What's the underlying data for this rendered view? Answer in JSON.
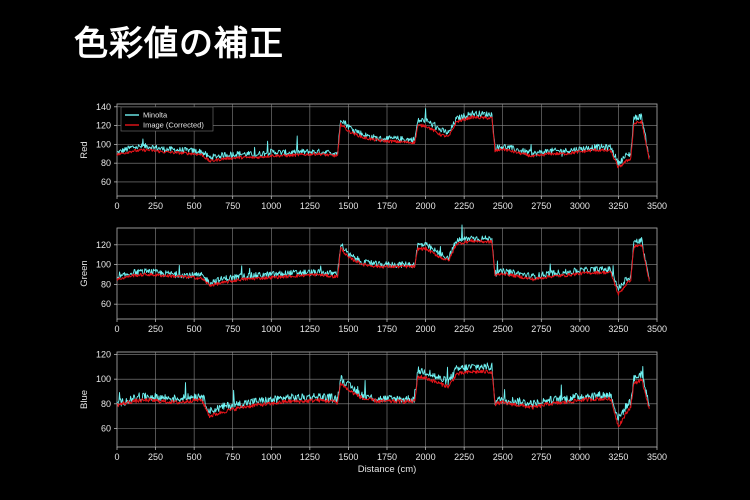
{
  "slide": {
    "title": "色彩値の補正"
  },
  "colors": {
    "background": "#000000",
    "minolta": "#6ff2f2",
    "image": "#e8141a",
    "grid": "#8a8a8a"
  },
  "chart_data": [
    {
      "type": "line",
      "ylabel": "Red",
      "xlim": [
        0,
        3500
      ],
      "ylim": [
        45,
        143
      ],
      "yticks": [
        60,
        80,
        100,
        120,
        140
      ],
      "xticks": [
        0,
        250,
        500,
        750,
        1000,
        1250,
        1500,
        1750,
        2000,
        2250,
        2500,
        2750,
        3000,
        3250,
        3500
      ],
      "legend": [
        "Minolta",
        "Image (Corrected)"
      ],
      "legend_position": "top-left",
      "series": [
        {
          "name": "Minolta",
          "x": [
            0,
            100,
            200,
            300,
            400,
            500,
            550,
            600,
            700,
            800,
            900,
            1000,
            1100,
            1200,
            1300,
            1400,
            1430,
            1450,
            1500,
            1600,
            1700,
            1800,
            1900,
            1930,
            1950,
            2000,
            2100,
            2150,
            2200,
            2300,
            2400,
            2430,
            2450,
            2500,
            2600,
            2700,
            2800,
            2900,
            3000,
            3100,
            3200,
            3250,
            3300,
            3330,
            3350,
            3400,
            3450
          ],
          "y": [
            91,
            97,
            98,
            95,
            94,
            93,
            92,
            86,
            89,
            90,
            89,
            92,
            91,
            92,
            92,
            91,
            91,
            128,
            119,
            110,
            106,
            106,
            105,
            105,
            125,
            126,
            115,
            112,
            127,
            133,
            132,
            132,
            96,
            98,
            94,
            90,
            93,
            93,
            95,
            97,
            97,
            80,
            88,
            90,
            128,
            130,
            86
          ]
        },
        {
          "name": "Image (Corrected)",
          "x": [
            0,
            100,
            200,
            300,
            400,
            500,
            550,
            600,
            700,
            800,
            900,
            1000,
            1100,
            1200,
            1300,
            1400,
            1430,
            1450,
            1500,
            1600,
            1700,
            1800,
            1900,
            1930,
            1950,
            2000,
            2100,
            2150,
            2200,
            2300,
            2400,
            2430,
            2450,
            2500,
            2600,
            2700,
            2800,
            2900,
            3000,
            3100,
            3200,
            3250,
            3300,
            3330,
            3350,
            3400,
            3450
          ],
          "y": [
            89,
            93,
            94,
            92,
            91,
            90,
            89,
            82,
            85,
            86,
            86,
            88,
            88,
            89,
            90,
            88,
            88,
            122,
            114,
            107,
            104,
            103,
            102,
            102,
            120,
            120,
            110,
            108,
            124,
            129,
            128,
            128,
            93,
            95,
            91,
            87,
            90,
            90,
            92,
            94,
            93,
            75,
            82,
            85,
            122,
            124,
            84
          ]
        }
      ]
    },
    {
      "type": "line",
      "ylabel": "Green",
      "xlim": [
        0,
        3500
      ],
      "ylim": [
        45,
        137
      ],
      "yticks": [
        60,
        80,
        100,
        120
      ],
      "xticks": [
        0,
        250,
        500,
        750,
        1000,
        1250,
        1500,
        1750,
        2000,
        2250,
        2500,
        2750,
        3000,
        3250,
        3500
      ],
      "series": [
        {
          "name": "Minolta",
          "x": [
            0,
            100,
            200,
            300,
            400,
            500,
            550,
            600,
            700,
            800,
            900,
            1000,
            1100,
            1200,
            1300,
            1400,
            1430,
            1450,
            1500,
            1600,
            1700,
            1800,
            1900,
            1930,
            1950,
            2000,
            2100,
            2150,
            2200,
            2300,
            2400,
            2430,
            2450,
            2500,
            2600,
            2700,
            2800,
            2900,
            3000,
            3100,
            3200,
            3250,
            3300,
            3330,
            3350,
            3400,
            3450
          ],
          "y": [
            86,
            92,
            93,
            91,
            90,
            89,
            89,
            82,
            86,
            88,
            89,
            90,
            91,
            92,
            92,
            91,
            91,
            121,
            110,
            102,
            100,
            100,
            100,
            100,
            120,
            120,
            110,
            107,
            124,
            127,
            126,
            126,
            91,
            93,
            91,
            88,
            91,
            92,
            94,
            95,
            95,
            75,
            85,
            88,
            122,
            125,
            85
          ]
        },
        {
          "name": "Image (Corrected)",
          "x": [
            0,
            100,
            200,
            300,
            400,
            500,
            550,
            600,
            700,
            800,
            900,
            1000,
            1100,
            1200,
            1300,
            1400,
            1430,
            1450,
            1500,
            1600,
            1700,
            1800,
            1900,
            1930,
            1950,
            2000,
            2100,
            2150,
            2200,
            2300,
            2400,
            2430,
            2450,
            2500,
            2600,
            2700,
            2800,
            2900,
            3000,
            3100,
            3200,
            3250,
            3300,
            3330,
            3350,
            3400,
            3450
          ],
          "y": [
            85,
            89,
            90,
            89,
            88,
            87,
            86,
            79,
            82,
            85,
            86,
            87,
            88,
            89,
            90,
            88,
            88,
            117,
            107,
            100,
            98,
            98,
            98,
            98,
            116,
            116,
            107,
            104,
            121,
            124,
            123,
            123,
            89,
            91,
            88,
            85,
            88,
            89,
            91,
            92,
            92,
            70,
            80,
            85,
            118,
            120,
            83
          ]
        }
      ]
    },
    {
      "type": "line",
      "ylabel": "Blue",
      "xlabel": "Distance (cm)",
      "xlim": [
        0,
        3500
      ],
      "ylim": [
        45,
        122
      ],
      "yticks": [
        60,
        80,
        100,
        120
      ],
      "xticks": [
        0,
        250,
        500,
        750,
        1000,
        1250,
        1500,
        1750,
        2000,
        2250,
        2500,
        2750,
        3000,
        3250,
        3500
      ],
      "series": [
        {
          "name": "Minolta",
          "x": [
            0,
            100,
            200,
            300,
            400,
            500,
            550,
            600,
            700,
            800,
            900,
            1000,
            1100,
            1200,
            1300,
            1400,
            1430,
            1450,
            1500,
            1600,
            1700,
            1800,
            1900,
            1930,
            1950,
            2000,
            2100,
            2150,
            2200,
            2300,
            2400,
            2430,
            2450,
            2500,
            2600,
            2700,
            2800,
            2900,
            3000,
            3100,
            3200,
            3250,
            3300,
            3330,
            3350,
            3400,
            3450
          ],
          "y": [
            80,
            84,
            86,
            85,
            84,
            86,
            87,
            74,
            78,
            80,
            82,
            83,
            85,
            85,
            86,
            85,
            84,
            101,
            95,
            86,
            84,
            84,
            84,
            84,
            107,
            106,
            100,
            98,
            108,
            110,
            110,
            110,
            82,
            84,
            82,
            80,
            83,
            84,
            86,
            87,
            87,
            68,
            78,
            82,
            100,
            105,
            78
          ]
        },
        {
          "name": "Image (Corrected)",
          "x": [
            0,
            100,
            200,
            300,
            400,
            500,
            550,
            600,
            700,
            800,
            900,
            1000,
            1100,
            1200,
            1300,
            1400,
            1430,
            1450,
            1500,
            1600,
            1700,
            1800,
            1900,
            1930,
            1950,
            2000,
            2100,
            2150,
            2200,
            2300,
            2400,
            2430,
            2450,
            2500,
            2600,
            2700,
            2800,
            2900,
            3000,
            3100,
            3200,
            3250,
            3300,
            3330,
            3350,
            3400,
            3450
          ],
          "y": [
            79,
            82,
            83,
            82,
            81,
            83,
            83,
            70,
            74,
            77,
            79,
            80,
            82,
            82,
            83,
            82,
            81,
            97,
            91,
            84,
            82,
            82,
            82,
            82,
            102,
            101,
            96,
            94,
            104,
            106,
            106,
            106,
            80,
            81,
            79,
            77,
            80,
            81,
            83,
            84,
            84,
            62,
            72,
            78,
            96,
            100,
            76
          ]
        }
      ]
    }
  ]
}
